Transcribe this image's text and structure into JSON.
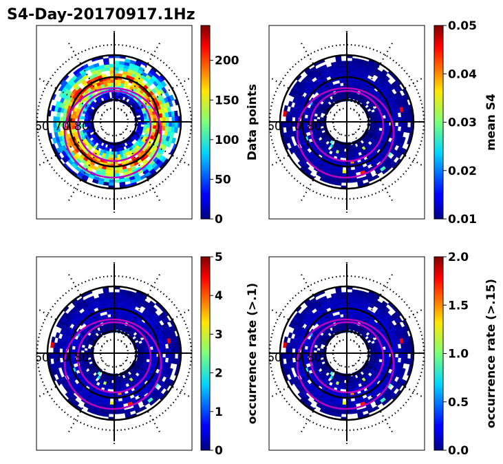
{
  "chart_data": {
    "type": "heatmap",
    "title": "S4-Day-20170917.1Hz",
    "panels": [
      {
        "name": "data-points",
        "colorbar_label": "Data points",
        "clim": [
          0,
          244
        ],
        "colorbar_ticks": [
          0,
          50,
          100,
          150,
          200
        ],
        "tick_labels": [
          "0",
          "50",
          "100",
          "150",
          "200"
        ],
        "lat_labels": [
          "60",
          "70",
          "80"
        ],
        "intensity": 1.0
      },
      {
        "name": "mean-s4",
        "colorbar_label": "mean S4",
        "clim": [
          0.01,
          0.05
        ],
        "colorbar_ticks": [
          0.01,
          0.02,
          0.03,
          0.04,
          0.05
        ],
        "tick_labels": [
          "0.01",
          "0.02",
          "0.03",
          "0.04",
          "0.05"
        ],
        "lat_labels": [
          "60",
          "70",
          "80"
        ],
        "intensity": 0.08
      },
      {
        "name": "occurrence-rate-0.1",
        "colorbar_label": "occurrence rate (>.1)",
        "clim": [
          0,
          5
        ],
        "colorbar_ticks": [
          0,
          1,
          2,
          3,
          4,
          5
        ],
        "tick_labels": [
          "0",
          "1",
          "2",
          "3",
          "4",
          "5"
        ],
        "lat_labels": [
          "60",
          "70",
          "80"
        ],
        "intensity": 0.1
      },
      {
        "name": "occurrence-rate-0.15",
        "colorbar_label": "occurrence rate (>.15)",
        "clim": [
          0,
          2
        ],
        "colorbar_ticks": [
          0,
          0.5,
          1,
          1.5,
          2
        ],
        "tick_labels": [
          "0.0",
          "0.5",
          "1.0",
          "1.5",
          "2.0"
        ],
        "lat_labels": [
          "60",
          "70",
          "80"
        ],
        "intensity": 0.1
      }
    ],
    "colormap": "jet",
    "oval_color": "#c000c0"
  }
}
